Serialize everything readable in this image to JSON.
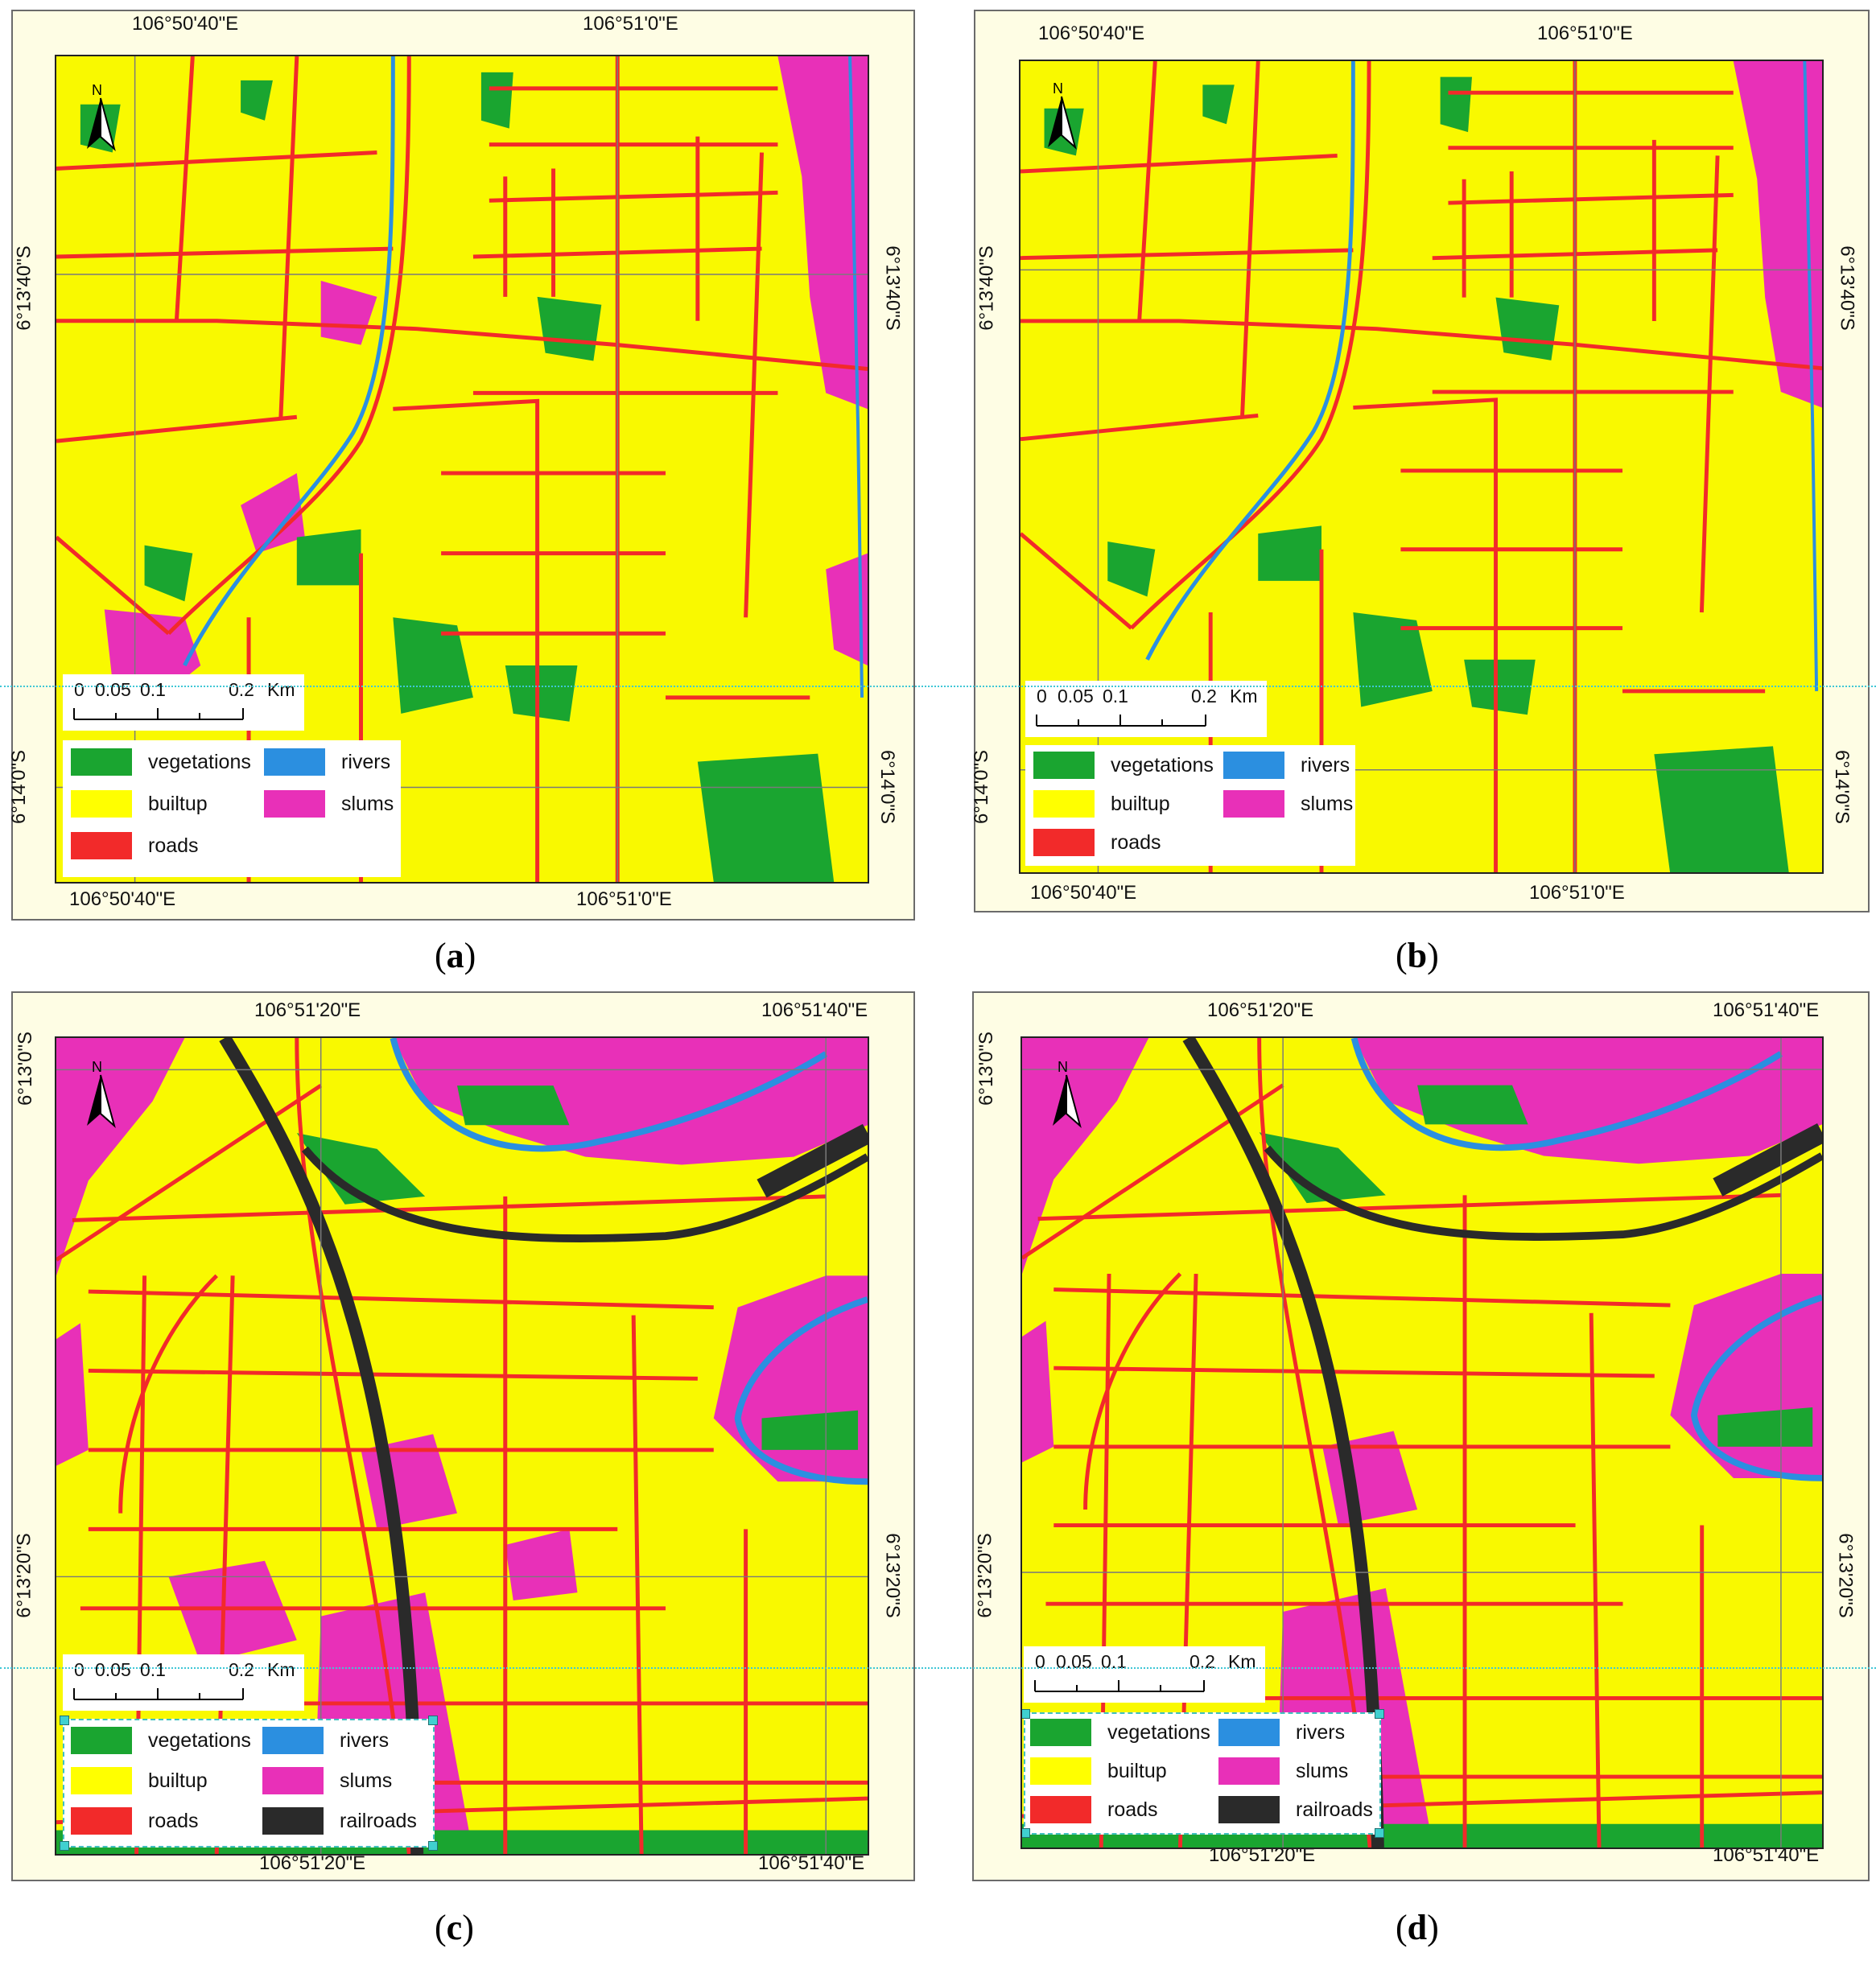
{
  "panels": [
    {
      "id": "a",
      "caption": "a",
      "top_labels": [
        "106°50'40\"E",
        "106°51'0\"E"
      ],
      "bottom_labels": [
        "106°50'40\"E",
        "106°51'0\"E"
      ],
      "left_labels": [
        "6°13'40\"S",
        "6°14'0\"S"
      ],
      "right_labels": [
        "6°13'40\"S",
        "6°14'0\"S"
      ],
      "has_railroads": false,
      "legend_selected": false
    },
    {
      "id": "b",
      "caption": "b",
      "top_labels": [
        "106°50'40\"E",
        "106°51'0\"E"
      ],
      "bottom_labels": [
        "106°50'40\"E",
        "106°51'0\"E"
      ],
      "left_labels": [
        "6°13'40\"S",
        "6°14'0\"S"
      ],
      "right_labels": [
        "6°13'40\"S",
        "6°14'0\"S"
      ],
      "has_railroads": false,
      "legend_selected": false
    },
    {
      "id": "c",
      "caption": "c",
      "top_labels": [
        "106°51'20\"E",
        "106°51'40\"E"
      ],
      "bottom_labels": [
        "106°51'20\"E",
        "106°51'40\"E"
      ],
      "left_labels": [
        "6°13'0\"S",
        "6°13'20\"S"
      ],
      "right_labels": [
        "6°13'20\"S"
      ],
      "has_railroads": true,
      "legend_selected": true
    },
    {
      "id": "d",
      "caption": "d",
      "top_labels": [
        "106°51'20\"E",
        "106°51'40\"E"
      ],
      "bottom_labels": [
        "106°51'20\"E",
        "106°51'40\"E"
      ],
      "left_labels": [
        "6°13'0\"S",
        "6°13'20\"S"
      ],
      "right_labels": [
        "6°13'20\"S"
      ],
      "has_railroads": true,
      "legend_selected": true
    }
  ],
  "scalebar": {
    "labels": [
      "0",
      "0.05",
      "0.1",
      "0.2"
    ],
    "unit": "Km"
  },
  "north_label": "N",
  "legend": {
    "vegetations": {
      "label": "vegetations",
      "color": "#1aa530"
    },
    "builtup": {
      "label": "builtup",
      "color": "#ffff00"
    },
    "roads": {
      "label": "roads",
      "color": "#f22a2a"
    },
    "rivers": {
      "label": "rivers",
      "color": "#2b8fe0"
    },
    "slums": {
      "label": "slums",
      "color": "#e830b8"
    },
    "railroads": {
      "label": "railroads",
      "color": "#2a2a2a"
    }
  }
}
